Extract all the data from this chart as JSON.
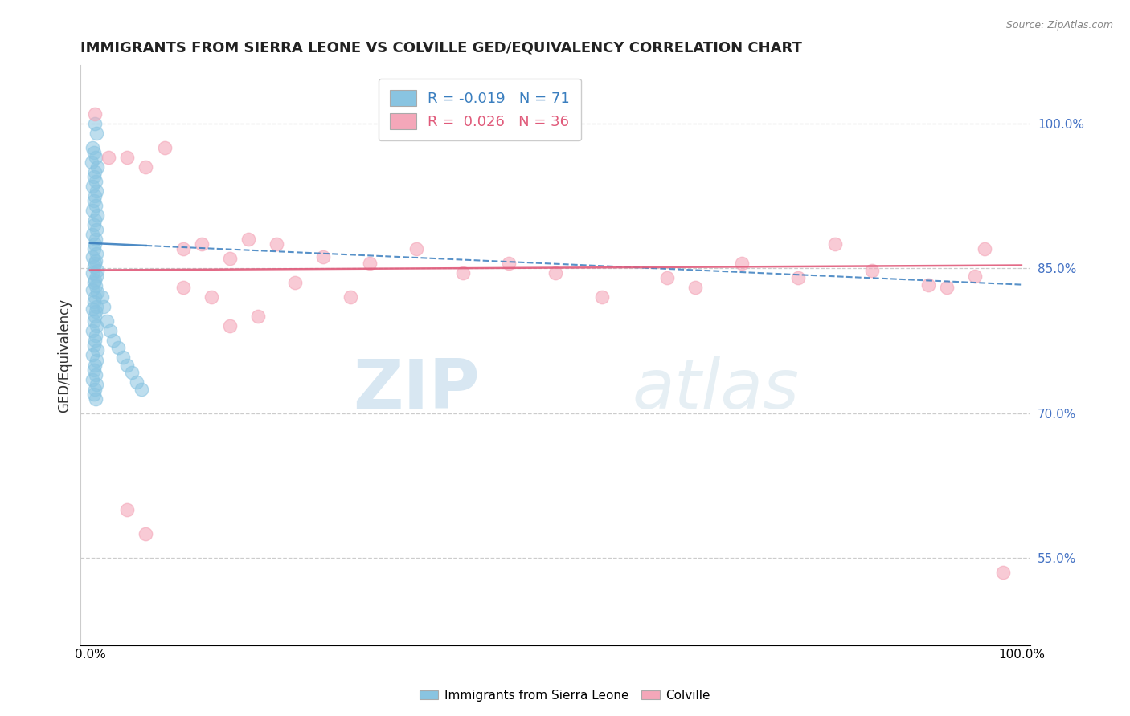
{
  "title": "IMMIGRANTS FROM SIERRA LEONE VS COLVILLE GED/EQUIVALENCY CORRELATION CHART",
  "source": "Source: ZipAtlas.com",
  "ylabel": "GED/Equivalency",
  "legend1_label": "Immigrants from Sierra Leone",
  "legend2_label": "Colville",
  "r1": -0.019,
  "n1": 71,
  "r2": 0.026,
  "n2": 36,
  "color_blue": "#89c4e1",
  "color_pink": "#f4a7b9",
  "color_blue_line": "#3a7ebf",
  "color_pink_line": "#e05a7a",
  "xlim": [
    -0.01,
    1.01
  ],
  "ylim": [
    0.46,
    1.06
  ],
  "yticks": [
    0.55,
    0.7,
    0.85,
    1.0
  ],
  "ytick_labels": [
    "55.0%",
    "70.0%",
    "85.0%",
    "100.0%"
  ],
  "blue_trend_x": [
    0.0,
    1.0
  ],
  "blue_trend_y": [
    0.876,
    0.833
  ],
  "pink_trend_x": [
    0.0,
    1.0
  ],
  "pink_trend_y": [
    0.848,
    0.853
  ],
  "blue_x": [
    0.005,
    0.007,
    0.003,
    0.004,
    0.006,
    0.002,
    0.008,
    0.005,
    0.004,
    0.006,
    0.003,
    0.007,
    0.005,
    0.004,
    0.006,
    0.003,
    0.008,
    0.005,
    0.004,
    0.007,
    0.003,
    0.006,
    0.005,
    0.004,
    0.007,
    0.003,
    0.006,
    0.005,
    0.004,
    0.008,
    0.003,
    0.007,
    0.005,
    0.004,
    0.006,
    0.003,
    0.008,
    0.005,
    0.004,
    0.007,
    0.003,
    0.006,
    0.005,
    0.004,
    0.007,
    0.003,
    0.006,
    0.005,
    0.004,
    0.008,
    0.003,
    0.007,
    0.005,
    0.004,
    0.006,
    0.003,
    0.007,
    0.005,
    0.004,
    0.006,
    0.013,
    0.015,
    0.018,
    0.022,
    0.025,
    0.03,
    0.035,
    0.04,
    0.045,
    0.05,
    0.055
  ],
  "blue_y": [
    1.0,
    0.99,
    0.975,
    0.97,
    0.965,
    0.96,
    0.955,
    0.95,
    0.945,
    0.94,
    0.935,
    0.93,
    0.925,
    0.92,
    0.915,
    0.91,
    0.905,
    0.9,
    0.895,
    0.89,
    0.885,
    0.88,
    0.875,
    0.87,
    0.865,
    0.862,
    0.858,
    0.855,
    0.852,
    0.848,
    0.845,
    0.842,
    0.838,
    0.835,
    0.832,
    0.828,
    0.825,
    0.82,
    0.815,
    0.81,
    0.808,
    0.805,
    0.8,
    0.795,
    0.79,
    0.785,
    0.78,
    0.775,
    0.77,
    0.765,
    0.76,
    0.755,
    0.75,
    0.745,
    0.74,
    0.735,
    0.73,
    0.725,
    0.72,
    0.715,
    0.82,
    0.81,
    0.795,
    0.785,
    0.775,
    0.768,
    0.758,
    0.75,
    0.742,
    0.732,
    0.725
  ],
  "pink_x": [
    0.005,
    0.02,
    0.04,
    0.06,
    0.08,
    0.1,
    0.12,
    0.15,
    0.17,
    0.2,
    0.25,
    0.3,
    0.35,
    0.4,
    0.45,
    0.5,
    0.55,
    0.62,
    0.65,
    0.7,
    0.76,
    0.8,
    0.84,
    0.9,
    0.95,
    0.13,
    0.18,
    0.22,
    0.28,
    0.04,
    0.06,
    0.1,
    0.15,
    0.98,
    0.96,
    0.92
  ],
  "pink_y": [
    1.01,
    0.965,
    0.965,
    0.955,
    0.975,
    0.87,
    0.875,
    0.86,
    0.88,
    0.875,
    0.862,
    0.855,
    0.87,
    0.845,
    0.855,
    0.845,
    0.82,
    0.84,
    0.83,
    0.855,
    0.84,
    0.875,
    0.848,
    0.833,
    0.842,
    0.82,
    0.8,
    0.835,
    0.82,
    0.6,
    0.575,
    0.83,
    0.79,
    0.535,
    0.87,
    0.83
  ],
  "watermark_zip": "ZIP",
  "watermark_atlas": "atlas",
  "background_color": "#ffffff"
}
